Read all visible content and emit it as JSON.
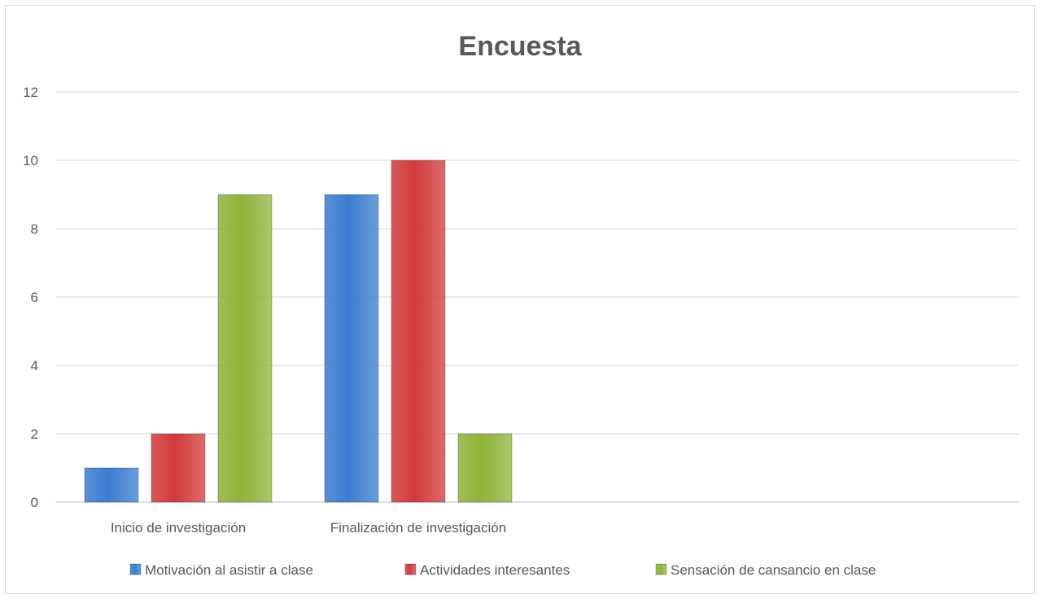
{
  "chart_data": {
    "type": "bar",
    "title": "Encuesta",
    "xlabel": "",
    "ylabel": "",
    "categories": [
      "Inicio de investigación",
      "Finalización de investigación"
    ],
    "series": [
      {
        "name": "Motivación al asistir a clase",
        "values": [
          1,
          9
        ],
        "color": "#3a7dd1"
      },
      {
        "name": "Actividades interesantes",
        "values": [
          2,
          10
        ],
        "color": "#d23b3b"
      },
      {
        "name": "Sensación de cansancio en clase",
        "values": [
          9,
          2
        ],
        "color": "#8fb33a"
      }
    ],
    "ylim": [
      0,
      12
    ],
    "yticks": [
      0,
      2,
      4,
      6,
      8,
      10,
      12
    ],
    "grid": true,
    "legend_position": "bottom"
  }
}
